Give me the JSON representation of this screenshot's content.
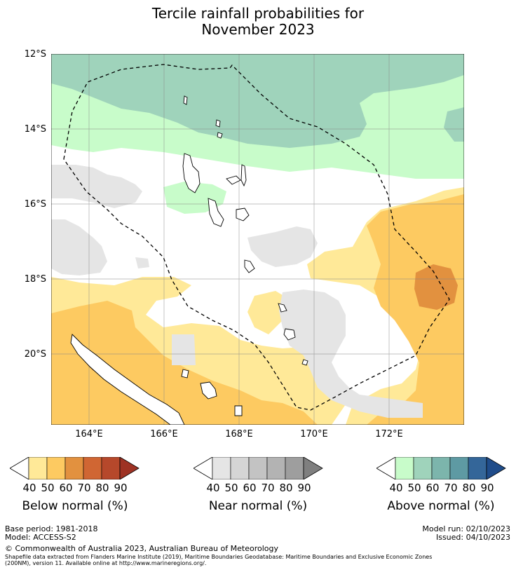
{
  "title_line1": "Tercile rainfall probabilities for",
  "title_line2": "November 2023",
  "axes": {
    "lat_labels": [
      "12°S",
      "14°S",
      "16°S",
      "18°S",
      "20°S"
    ],
    "lon_labels": [
      "164°E",
      "166°E",
      "168°E",
      "170°E",
      "172°E"
    ]
  },
  "colorbars": [
    {
      "label": "Below normal (%)",
      "ticks": [
        "40",
        "50",
        "60",
        "70",
        "80",
        "90"
      ],
      "colors": [
        "#ffe998",
        "#fdca61",
        "#e2913f",
        "#d06633",
        "#b6482b",
        "#9e3224"
      ]
    },
    {
      "label": "Near normal (%)",
      "ticks": [
        "40",
        "50",
        "60",
        "70",
        "80",
        "90"
      ],
      "colors": [
        "#e5e5e5",
        "#d5d5d5",
        "#c3c3c3",
        "#b3b3b3",
        "#9e9e9e",
        "#7f7f7f"
      ]
    },
    {
      "label": "Above normal (%)",
      "ticks": [
        "40",
        "50",
        "60",
        "70",
        "80",
        "90"
      ],
      "colors": [
        "#c8fcca",
        "#9fd3bb",
        "#7cb5ac",
        "#5e9aa3",
        "#346699",
        "#1f4c8a"
      ]
    }
  ],
  "footer": {
    "base_period": "Base period: 1981-2018",
    "model": "Model: ACCESS-S2",
    "model_run": "Model run: 02/10/2023",
    "issued": "Issued: 04/10/2023",
    "copyright": "© Commonwealth of Australia 2023, Australian Bureau of Meteorology",
    "shapefile_1": "Shapefile data extracted from Flanders Marine Institute (2019), Maritime Boundaries Geodatabase: Maritime Boundaries and Exclusive Economic Zones",
    "shapefile_2": "(200NM), version 11. Available online at http://www.marineregions.org/."
  }
}
